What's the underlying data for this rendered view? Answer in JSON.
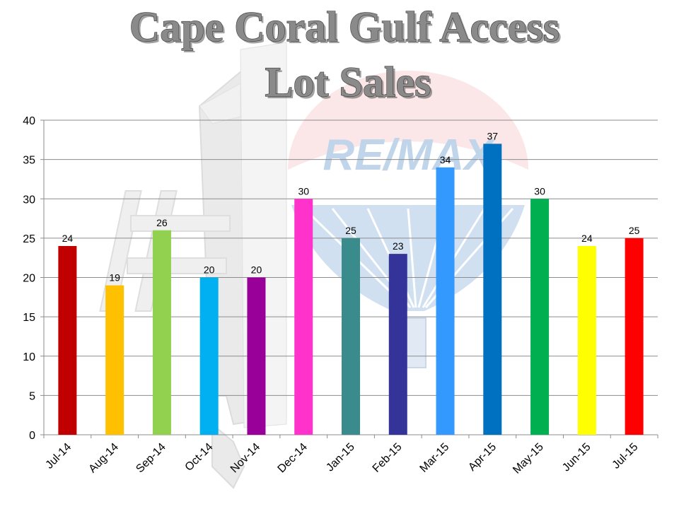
{
  "chart_data": {
    "type": "bar",
    "title_lines": [
      "Cape Coral Gulf Access",
      "Lot Sales"
    ],
    "categories": [
      "Jul-14",
      "Aug-14",
      "Sep-14",
      "Oct-14",
      "Nov-14",
      "Dec-14",
      "Jan-15",
      "Feb-15",
      "Mar-15",
      "Apr-15",
      "May-15",
      "Jun-15",
      "Jul-15"
    ],
    "values": [
      24,
      19,
      26,
      20,
      20,
      30,
      25,
      23,
      34,
      37,
      30,
      24,
      25
    ],
    "colors": [
      "#c00000",
      "#ffc000",
      "#92d050",
      "#00b0f0",
      "#990099",
      "#ff33cc",
      "#3a8c8c",
      "#333399",
      "#3399ff",
      "#0070c0",
      "#00b050",
      "#ffff00",
      "#ff0000"
    ],
    "xlabel": "",
    "ylabel": "",
    "ylim": [
      0,
      40
    ],
    "yticks": [
      0,
      5,
      10,
      15,
      20,
      25,
      30,
      35,
      40
    ],
    "grid": true,
    "legend": "none",
    "watermark": {
      "brand_text": "RE/MAX",
      "badge_text": "#1"
    }
  }
}
